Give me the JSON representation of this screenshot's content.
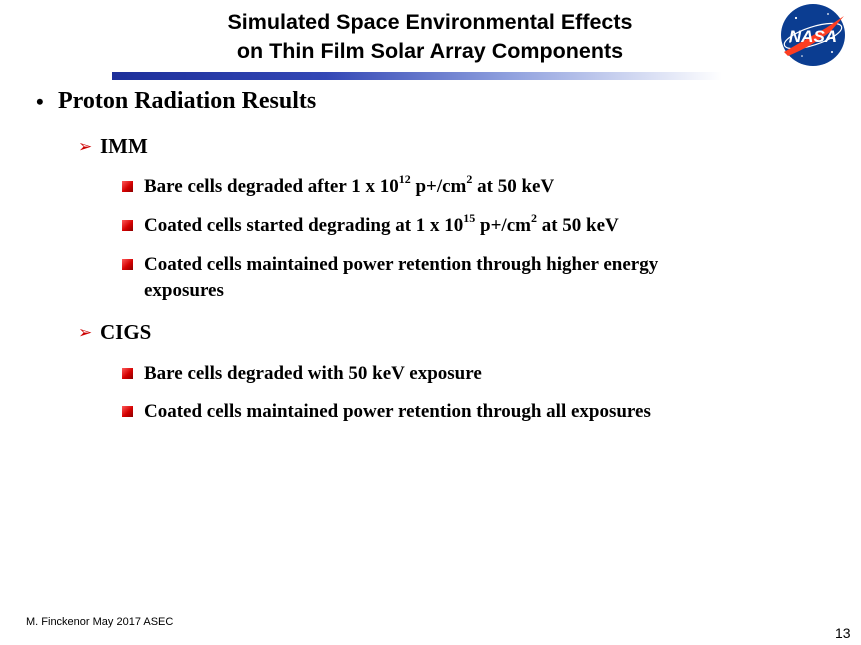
{
  "header": {
    "title_line1": "Simulated Space Environmental Effects",
    "title_line2": "on Thin Film Solar Array Components",
    "logo_text": "NASA",
    "bar_color": "#1d2f9a"
  },
  "content": {
    "heading": "Proton Radiation Results",
    "groups": [
      {
        "label": "IMM",
        "items": [
          {
            "pre": "Bare cells degraded after 1 x 10",
            "sup": "12",
            "mid": " p+/cm",
            "sup2": "2",
            "post": " at 50 keV"
          },
          {
            "pre": "Coated cells started degrading at 1 x 10",
            "sup": "15",
            "mid": " p+/cm",
            "sup2": "2",
            "post": " at 50 keV"
          },
          {
            "line1": "Coated cells maintained power retention through higher energy",
            "line2": "exposures"
          }
        ]
      },
      {
        "label": "CIGS",
        "items": [
          {
            "text": "Bare cells degraded with 50 keV exposure"
          },
          {
            "text": "Coated cells maintained power retention through all exposures"
          }
        ]
      }
    ]
  },
  "footer": {
    "left": "M. Finckenor  May 2017   ASEC",
    "page": "13"
  },
  "colors": {
    "bullet_red": "#d40000",
    "arrow_red": "#cc0000"
  }
}
